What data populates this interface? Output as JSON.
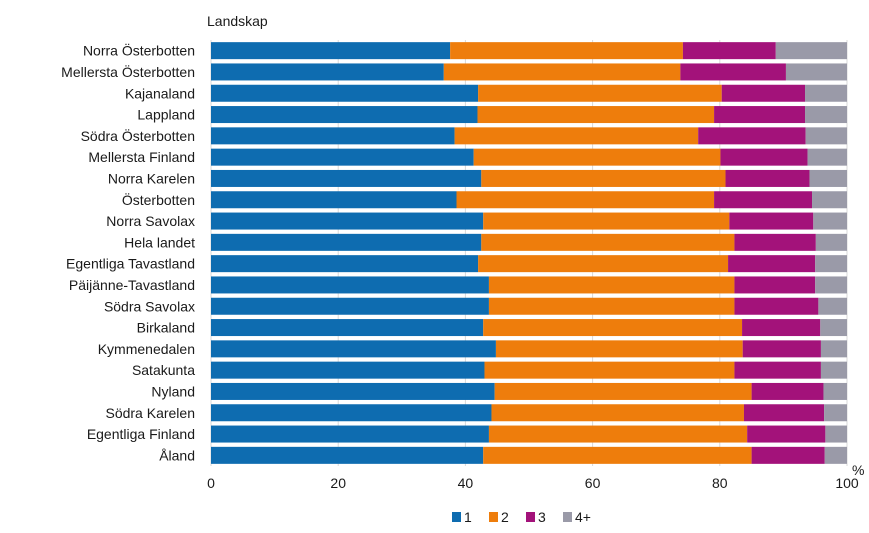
{
  "chart_data": {
    "type": "bar",
    "orientation": "horizontal",
    "stacked": true,
    "title": "Landskap",
    "xlabel": "%",
    "xlim": [
      0,
      100
    ],
    "x_ticks": [
      "0",
      "20",
      "40",
      "60",
      "80",
      "100"
    ],
    "grid": true,
    "legend_position": "bottom",
    "categories": [
      "Norra Österbotten",
      "Mellersta Österbotten",
      "Kajanaland",
      "Lappland",
      "Södra Österbotten",
      "Mellersta Finland",
      "Norra Karelen",
      "Österbotten",
      "Norra Savolax",
      "Hela landet",
      "Egentliga Tavastland",
      "Päijänne-Tavastland",
      "Södra Savolax",
      "Birkaland",
      "Kymmenedalen",
      "Satakunta",
      "Nyland",
      "Södra Karelen",
      "Egentliga Finland",
      "Åland"
    ],
    "series": [
      {
        "name": "1",
        "color": "#0E6CB0",
        "values": [
          37.6,
          36.6,
          42.0,
          41.9,
          38.3,
          41.3,
          42.5,
          38.6,
          42.8,
          42.5,
          42.0,
          43.7,
          43.7,
          42.8,
          44.8,
          43.0,
          44.6,
          44.1,
          43.7,
          42.8
        ]
      },
      {
        "name": "2",
        "color": "#EE7D0C",
        "values": [
          36.6,
          37.2,
          38.3,
          37.2,
          38.3,
          38.8,
          38.4,
          40.5,
          38.7,
          39.8,
          39.3,
          38.6,
          38.6,
          40.7,
          38.8,
          39.3,
          40.4,
          39.7,
          40.6,
          42.2
        ]
      },
      {
        "name": "3",
        "color": "#A3127A",
        "values": [
          14.6,
          16.6,
          13.1,
          14.3,
          16.9,
          13.7,
          13.2,
          15.4,
          13.2,
          12.8,
          13.7,
          12.7,
          13.2,
          12.3,
          12.3,
          13.6,
          11.3,
          12.6,
          12.3,
          11.5
        ]
      },
      {
        "name": "4+",
        "color": "#9A9AA8",
        "values": [
          11.2,
          9.6,
          6.6,
          6.6,
          6.5,
          6.2,
          5.9,
          5.5,
          5.3,
          4.9,
          5.0,
          5.0,
          4.5,
          4.2,
          4.1,
          4.1,
          3.7,
          3.6,
          3.4,
          3.5
        ]
      }
    ]
  }
}
